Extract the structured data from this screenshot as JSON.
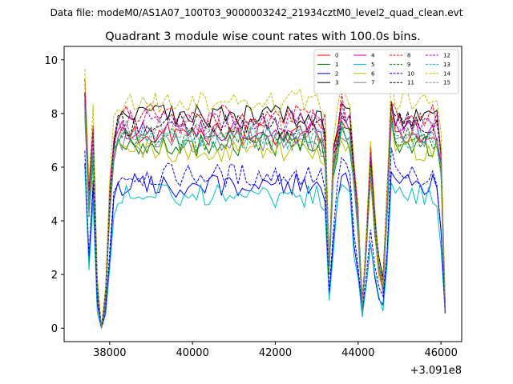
{
  "header": {
    "data_file_label": "Data file: modeM0/AS1A07_100T03_9000003242_21934cztM0_level2_quad_clean.evt"
  },
  "chart_data": {
    "type": "line",
    "title": "Quadrant 3 module wise count rates with 100.0s bins.",
    "xlabel": "",
    "ylabel": "",
    "x_offset_label": "+3.091e8",
    "xlim": [
      36900,
      46500
    ],
    "ylim": [
      -0.5,
      10.5
    ],
    "x_ticks": [
      38000,
      40000,
      42000,
      44000,
      46000
    ],
    "x_tick_labels": [
      "38000",
      "40000",
      "42000",
      "44000",
      "46000"
    ],
    "y_ticks": [
      0,
      2,
      4,
      6,
      8,
      10
    ],
    "y_tick_labels": [
      "0",
      "2",
      "4",
      "6",
      "8",
      "10"
    ],
    "grid": false,
    "legend_location": "top-right",
    "legend_columns": 4,
    "x_start": 37400,
    "x_step": 100,
    "x_end": 46100,
    "series": [
      {
        "name": "0",
        "color": "#ff0000",
        "dash": "solid",
        "level": 7.6,
        "gap_factor": 1.0
      },
      {
        "name": "1",
        "color": "#008000",
        "dash": "solid",
        "level": 7.2,
        "gap_factor": 1.0
      },
      {
        "name": "2",
        "color": "#0000ff",
        "dash": "solid",
        "level": 5.6,
        "gap_factor": 0.75
      },
      {
        "name": "3",
        "color": "#000000",
        "dash": "solid",
        "level": 8.3,
        "gap_factor": 1.0
      },
      {
        "name": "4",
        "color": "#bf00bf",
        "dash": "solid",
        "level": 7.7,
        "gap_factor": 1.0
      },
      {
        "name": "5",
        "color": "#00bfbf",
        "dash": "solid",
        "level": 5.2,
        "gap_factor": 0.72
      },
      {
        "name": "6",
        "color": "#bfbf00",
        "dash": "solid",
        "level": 7.0,
        "gap_factor": 1.0
      },
      {
        "name": "7",
        "color": "#808080",
        "dash": "solid",
        "level": 7.3,
        "gap_factor": 1.0
      },
      {
        "name": "8",
        "color": "#ff0000",
        "dash": "dashed",
        "level": 8.4,
        "gap_factor": 1.0
      },
      {
        "name": "9",
        "color": "#008000",
        "dash": "dashed",
        "level": 7.4,
        "gap_factor": 1.0
      },
      {
        "name": "10",
        "color": "#0000ff",
        "dash": "dashed",
        "level": 6.0,
        "gap_factor": 0.8
      },
      {
        "name": "11",
        "color": "#000000",
        "dash": "dashed",
        "level": 8.0,
        "gap_factor": 1.0
      },
      {
        "name": "12",
        "color": "#bf00bf",
        "dash": "dashed",
        "level": 8.1,
        "gap_factor": 1.0
      },
      {
        "name": "13",
        "color": "#00bfbf",
        "dash": "dashed",
        "level": 7.5,
        "gap_factor": 1.0
      },
      {
        "name": "14",
        "color": "#bfbf00",
        "dash": "dashed",
        "level": 8.9,
        "gap_factor": 1.0
      },
      {
        "name": "15",
        "color": "#808080",
        "dash": "dashed",
        "level": 7.8,
        "gap_factor": 1.0
      }
    ],
    "envelope": [
      {
        "x": 37400,
        "f": 1.1
      },
      {
        "x": 37500,
        "f": 0.6
      },
      {
        "x": 37600,
        "f": 0.9
      },
      {
        "x": 37700,
        "f": 0.2
      },
      {
        "x": 37800,
        "f": 0.0
      },
      {
        "x": 37900,
        "f": 0.15
      },
      {
        "x": 38000,
        "f": 0.6
      },
      {
        "x": 38100,
        "f": 0.85
      },
      {
        "x": 38200,
        "f": 0.95
      },
      {
        "x": 43000,
        "f": 0.95
      },
      {
        "x": 43200,
        "f": 0.9
      },
      {
        "x": 43300,
        "f": 0.3
      },
      {
        "x": 43400,
        "f": 0.8
      },
      {
        "x": 43600,
        "f": 1.0
      },
      {
        "x": 43800,
        "f": 0.95
      },
      {
        "x": 44000,
        "f": 0.5
      },
      {
        "x": 44100,
        "f": 0.1
      },
      {
        "x": 44200,
        "f": 0.4
      },
      {
        "x": 44300,
        "f": 0.8
      },
      {
        "x": 44400,
        "f": 0.5
      },
      {
        "x": 44500,
        "f": 0.3
      },
      {
        "x": 44600,
        "f": 0.2
      },
      {
        "x": 44700,
        "f": 0.6
      },
      {
        "x": 44800,
        "f": 1.05
      },
      {
        "x": 44900,
        "f": 0.95
      },
      {
        "x": 45900,
        "f": 0.95
      },
      {
        "x": 46000,
        "f": 0.8
      },
      {
        "x": 46100,
        "f": 0.1
      }
    ]
  }
}
